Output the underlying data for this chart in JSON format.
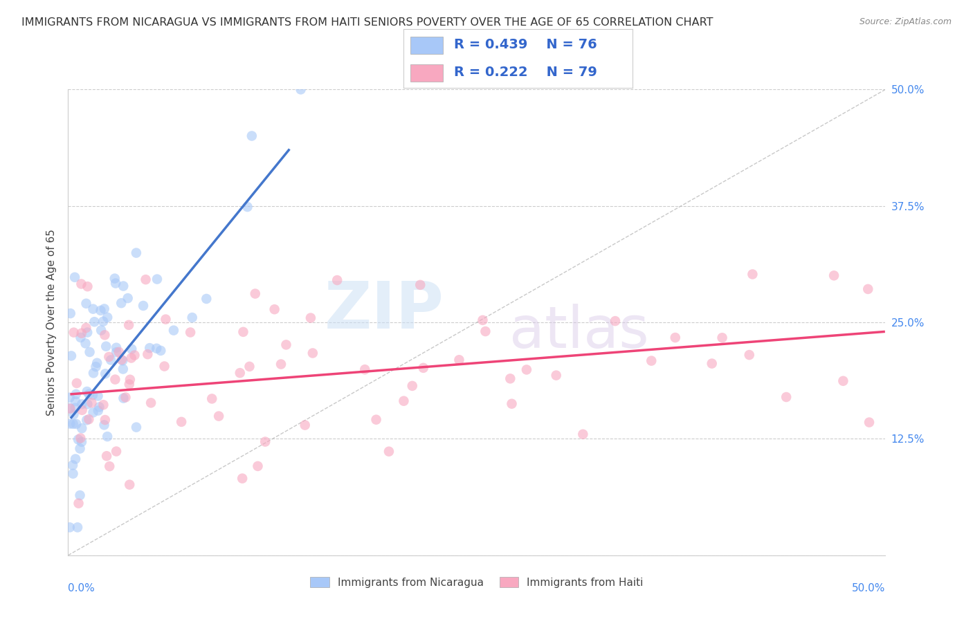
{
  "title": "IMMIGRANTS FROM NICARAGUA VS IMMIGRANTS FROM HAITI SENIORS POVERTY OVER THE AGE OF 65 CORRELATION CHART",
  "source": "Source: ZipAtlas.com",
  "ylabel": "Seniors Poverty Over the Age of 65",
  "r_nicaragua": 0.439,
  "n_nicaragua": 76,
  "r_haiti": 0.222,
  "n_haiti": 79,
  "color_nicaragua": "#a8c8f8",
  "color_haiti": "#f8a8c0",
  "color_nicaragua_line": "#4477cc",
  "color_haiti_line": "#ee4477",
  "color_diag": "#bbbbbb",
  "watermark_zip": "ZIP",
  "watermark_atlas": "atlas",
  "xlim": [
    0.0,
    0.5
  ],
  "ylim": [
    0.0,
    0.5
  ],
  "background_color": "#ffffff",
  "grid_color": "#cccccc",
  "title_fontsize": 11.5,
  "axis_label_fontsize": 11,
  "tick_label_color": "#4488ee",
  "tick_label_fontsize": 11,
  "legend_fontsize": 14,
  "nic_line_x0": 0.002,
  "nic_line_x1": 0.135,
  "nic_line_y0": 0.148,
  "nic_line_y1": 0.435,
  "hai_line_x0": 0.002,
  "hai_line_x1": 0.499,
  "hai_line_y0": 0.173,
  "hai_line_y1": 0.24
}
